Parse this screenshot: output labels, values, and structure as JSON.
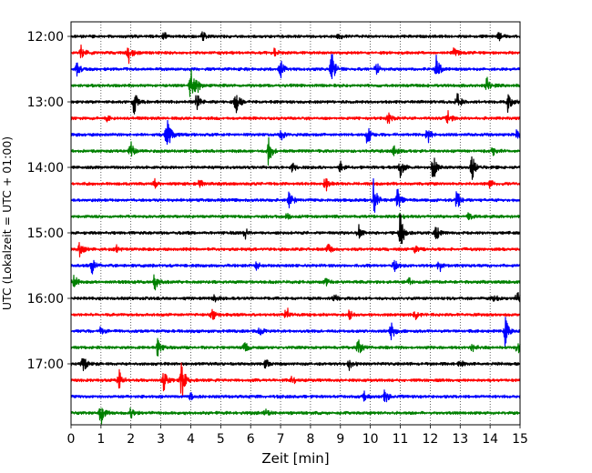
{
  "chart_data": {
    "type": "line",
    "title": "",
    "xlabel": "Zeit  [min]",
    "ylabel": "UTC (Lokalzeit = UTC + 01:00)",
    "xlim": [
      0,
      15
    ],
    "x_ticks": [
      "0",
      "1",
      "2",
      "3",
      "4",
      "5",
      "6",
      "7",
      "8",
      "9",
      "10",
      "11",
      "12",
      "13",
      "14",
      "15"
    ],
    "y_tick_labels": [
      "12:00",
      "13:00",
      "14:00",
      "15:00",
      "16:00",
      "17:00"
    ],
    "grid": "vertical-dotted",
    "trace_colors": [
      "#000000",
      "#ff0000",
      "#0000ff",
      "#008000"
    ],
    "traces": [
      {
        "start": "12:00",
        "events": [
          [
            3.1,
            0.25
          ],
          [
            4.4,
            0.3
          ],
          [
            8.9,
            0.35
          ],
          [
            14.3,
            0.3
          ]
        ]
      },
      {
        "start": "12:15",
        "events": [
          [
            0.35,
            0.45
          ],
          [
            1.9,
            0.9
          ],
          [
            6.8,
            0.3
          ],
          [
            12.8,
            0.3
          ]
        ]
      },
      {
        "start": "12:30",
        "events": [
          [
            0.2,
            0.5
          ],
          [
            7.0,
            0.6
          ],
          [
            8.7,
            1.35
          ],
          [
            10.2,
            0.45
          ],
          [
            12.2,
            1.0
          ]
        ]
      },
      {
        "start": "12:45",
        "events": [
          [
            4.0,
            1.2
          ],
          [
            4.2,
            0.5
          ],
          [
            13.9,
            0.55
          ]
        ]
      },
      {
        "start": "13:00",
        "events": [
          [
            2.1,
            0.9
          ],
          [
            4.2,
            0.6
          ],
          [
            5.5,
            1.0
          ],
          [
            12.9,
            0.6
          ],
          [
            14.6,
            0.6
          ]
        ]
      },
      {
        "start": "13:15",
        "events": [
          [
            1.2,
            0.2
          ],
          [
            10.6,
            0.35
          ],
          [
            12.6,
            0.45
          ]
        ]
      },
      {
        "start": "13:30",
        "events": [
          [
            3.2,
            1.4
          ],
          [
            7.0,
            0.4
          ],
          [
            9.9,
            0.75
          ],
          [
            11.9,
            0.7
          ],
          [
            14.9,
            0.3
          ]
        ]
      },
      {
        "start": "13:45",
        "events": [
          [
            2.0,
            0.7
          ],
          [
            6.6,
            1.0
          ],
          [
            10.8,
            0.35
          ],
          [
            14.1,
            0.25
          ]
        ]
      },
      {
        "start": "14:00",
        "events": [
          [
            7.4,
            0.3
          ],
          [
            9.0,
            0.35
          ],
          [
            11.0,
            0.7
          ],
          [
            12.1,
            1.0
          ],
          [
            13.4,
            0.8
          ]
        ]
      },
      {
        "start": "14:15",
        "events": [
          [
            2.8,
            0.25
          ],
          [
            4.3,
            0.3
          ],
          [
            8.5,
            0.55
          ],
          [
            14.0,
            0.25
          ]
        ]
      },
      {
        "start": "14:30",
        "events": [
          [
            7.3,
            0.6
          ],
          [
            10.1,
            1.4
          ],
          [
            10.9,
            0.8
          ],
          [
            12.9,
            0.7
          ]
        ]
      },
      {
        "start": "14:45",
        "events": [
          [
            7.2,
            0.2
          ],
          [
            11.0,
            0.25
          ],
          [
            13.3,
            0.25
          ]
        ]
      },
      {
        "start": "15:00",
        "events": [
          [
            5.8,
            0.45
          ],
          [
            9.6,
            0.75
          ],
          [
            11.0,
            1.4
          ],
          [
            12.2,
            0.5
          ]
        ]
      },
      {
        "start": "15:15",
        "events": [
          [
            0.3,
            0.6
          ],
          [
            1.5,
            0.25
          ],
          [
            8.6,
            0.35
          ],
          [
            11.5,
            0.25
          ]
        ]
      },
      {
        "start": "15:30",
        "events": [
          [
            0.7,
            0.6
          ],
          [
            6.2,
            0.3
          ],
          [
            10.8,
            0.4
          ],
          [
            12.3,
            0.5
          ]
        ]
      },
      {
        "start": "15:45",
        "events": [
          [
            0.1,
            0.45
          ],
          [
            2.8,
            0.55
          ],
          [
            8.5,
            0.3
          ],
          [
            11.3,
            0.25
          ]
        ]
      },
      {
        "start": "16:00",
        "events": [
          [
            4.8,
            0.25
          ],
          [
            8.8,
            0.25
          ],
          [
            14.1,
            0.3
          ],
          [
            14.9,
            0.55
          ]
        ]
      },
      {
        "start": "16:15",
        "events": [
          [
            4.7,
            0.5
          ],
          [
            7.2,
            0.6
          ],
          [
            9.3,
            0.3
          ],
          [
            11.5,
            0.3
          ]
        ]
      },
      {
        "start": "16:30",
        "events": [
          [
            1.0,
            0.3
          ],
          [
            6.3,
            0.3
          ],
          [
            10.7,
            0.6
          ],
          [
            14.5,
            0.95
          ]
        ]
      },
      {
        "start": "16:45",
        "events": [
          [
            2.9,
            0.65
          ],
          [
            5.8,
            0.4
          ],
          [
            9.6,
            0.6
          ],
          [
            13.4,
            0.35
          ],
          [
            14.9,
            0.55
          ]
        ]
      },
      {
        "start": "17:00",
        "events": [
          [
            0.4,
            0.7
          ],
          [
            6.5,
            0.35
          ],
          [
            9.3,
            0.35
          ],
          [
            13.0,
            0.3
          ]
        ]
      },
      {
        "start": "17:15",
        "events": [
          [
            1.6,
            0.75
          ],
          [
            3.1,
            0.65
          ],
          [
            3.7,
            1.4
          ],
          [
            7.4,
            0.3
          ]
        ]
      },
      {
        "start": "17:30",
        "events": [
          [
            4.0,
            0.2
          ],
          [
            9.8,
            0.3
          ],
          [
            10.5,
            0.55
          ]
        ]
      },
      {
        "start": "17:45",
        "events": [
          [
            1.0,
            1.0
          ],
          [
            2.0,
            0.3
          ],
          [
            6.5,
            0.2
          ]
        ]
      }
    ]
  }
}
